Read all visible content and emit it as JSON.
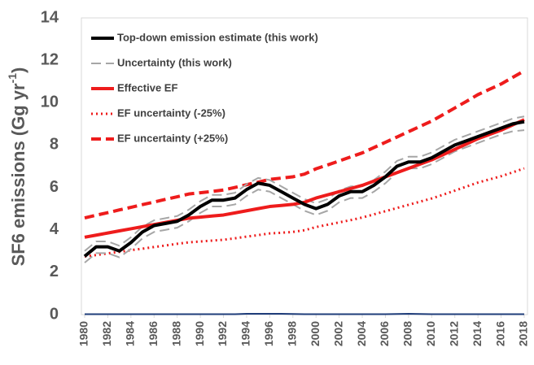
{
  "chart_data": {
    "type": "line",
    "ylabel": {
      "text": "SF6 emissions (Gg yr",
      "sup": "-1",
      "end": ")"
    },
    "x": [
      1980,
      1981,
      1982,
      1983,
      1984,
      1985,
      1986,
      1987,
      1988,
      1989,
      1990,
      1991,
      1992,
      1993,
      1994,
      1995,
      1996,
      1997,
      1998,
      1999,
      2000,
      2001,
      2002,
      2003,
      2004,
      2005,
      2006,
      2007,
      2008,
      2009,
      2010,
      2011,
      2012,
      2013,
      2014,
      2015,
      2016,
      2017,
      2018
    ],
    "xlim": [
      1980,
      2018
    ],
    "xticks": [
      1980,
      1982,
      1984,
      1986,
      1988,
      1990,
      1992,
      1994,
      1996,
      1998,
      2000,
      2002,
      2004,
      2006,
      2008,
      2010,
      2012,
      2014,
      2016,
      2018
    ],
    "ylim": [
      0,
      14
    ],
    "yticks": [
      0,
      2,
      4,
      6,
      8,
      10,
      12,
      14
    ],
    "grid": false,
    "legend": "top-left",
    "series": [
      {
        "name": "Top-down emission estimate (this work)",
        "color": "#000000",
        "dash": "solid",
        "width": 4,
        "values": [
          2.75,
          3.2,
          3.2,
          3.0,
          3.4,
          3.9,
          4.2,
          4.3,
          4.4,
          4.7,
          5.1,
          5.4,
          5.4,
          5.5,
          5.9,
          6.2,
          6.1,
          5.8,
          5.5,
          5.2,
          5.0,
          5.2,
          5.6,
          5.8,
          5.8,
          6.1,
          6.5,
          7.0,
          7.2,
          7.2,
          7.4,
          7.7,
          8.0,
          8.2,
          8.4,
          8.6,
          8.8,
          9.0,
          9.1
        ]
      },
      {
        "name": "Uncertainty (this work)",
        "color": "#a6a6a6",
        "dash": "dash",
        "width": 2,
        "values": [
          3.0,
          3.45,
          3.45,
          3.25,
          3.65,
          4.15,
          4.45,
          4.55,
          4.65,
          4.95,
          5.35,
          5.65,
          5.65,
          5.75,
          6.15,
          6.45,
          6.35,
          6.05,
          5.75,
          5.45,
          5.25,
          5.45,
          5.85,
          6.05,
          6.05,
          6.35,
          6.75,
          7.25,
          7.45,
          7.45,
          7.65,
          7.95,
          8.25,
          8.45,
          8.65,
          8.85,
          9.05,
          9.25,
          9.35
        ],
        "lower": [
          2.45,
          2.9,
          2.9,
          2.7,
          3.1,
          3.6,
          3.9,
          4.0,
          4.1,
          4.4,
          4.8,
          5.1,
          5.1,
          5.2,
          5.6,
          5.9,
          5.8,
          5.5,
          5.2,
          4.9,
          4.7,
          4.9,
          5.3,
          5.5,
          5.5,
          5.8,
          6.2,
          6.7,
          6.9,
          6.9,
          7.1,
          7.4,
          7.7,
          7.9,
          8.1,
          8.3,
          8.5,
          8.65,
          8.7
        ]
      },
      {
        "name": "Effective EF",
        "color": "#ee1c1c",
        "dash": "solid",
        "width": 4,
        "values": [
          3.65,
          3.75,
          3.85,
          3.95,
          4.05,
          4.15,
          4.25,
          4.35,
          4.45,
          4.55,
          4.6,
          4.65,
          4.7,
          4.8,
          4.9,
          5.0,
          5.1,
          5.15,
          5.2,
          5.3,
          5.5,
          5.65,
          5.8,
          5.95,
          6.1,
          6.3,
          6.5,
          6.7,
          6.9,
          7.1,
          7.3,
          7.55,
          7.8,
          8.05,
          8.3,
          8.5,
          8.7,
          8.95,
          9.2
        ]
      },
      {
        "name": "EF uncertainty (-25%)",
        "color": "#ee1c1c",
        "dash": "dots",
        "width": 3,
        "values": [
          2.74,
          2.81,
          2.89,
          2.96,
          3.04,
          3.11,
          3.19,
          3.26,
          3.34,
          3.41,
          3.45,
          3.49,
          3.53,
          3.6,
          3.68,
          3.75,
          3.83,
          3.86,
          3.9,
          3.98,
          4.13,
          4.24,
          4.35,
          4.46,
          4.58,
          4.73,
          4.88,
          5.03,
          5.18,
          5.33,
          5.48,
          5.66,
          5.85,
          6.04,
          6.23,
          6.38,
          6.53,
          6.71,
          6.9
        ]
      },
      {
        "name": "EF uncertainty (+25%)",
        "color": "#ee1c1c",
        "dash": "dash",
        "width": 4,
        "values": [
          4.56,
          4.69,
          4.81,
          4.94,
          5.06,
          5.19,
          5.31,
          5.44,
          5.56,
          5.69,
          5.75,
          5.81,
          5.88,
          6.0,
          6.13,
          6.25,
          6.38,
          6.44,
          6.5,
          6.63,
          6.88,
          7.06,
          7.25,
          7.44,
          7.63,
          7.88,
          8.13,
          8.38,
          8.63,
          8.88,
          9.13,
          9.44,
          9.75,
          10.06,
          10.38,
          10.63,
          10.88,
          11.19,
          11.5
        ]
      },
      {
        "color": "#1f3d7a",
        "dash": "solid",
        "width": 2,
        "values": [
          0.02,
          0.02,
          0.02,
          0.02,
          0.02,
          0.02,
          0.02,
          0.02,
          0.02,
          0.02,
          0.02,
          0.02,
          0.02,
          0.02,
          0.04,
          0.04,
          0.04,
          0.04,
          0.03,
          0.02,
          0.02,
          0.02,
          0.02,
          0.02,
          0.02,
          0.02,
          0.02,
          0.03,
          0.04,
          0.03,
          0.02,
          0.02,
          0.02,
          0.02,
          0.02,
          0.02,
          0.02,
          0.02,
          0.02
        ]
      }
    ]
  }
}
